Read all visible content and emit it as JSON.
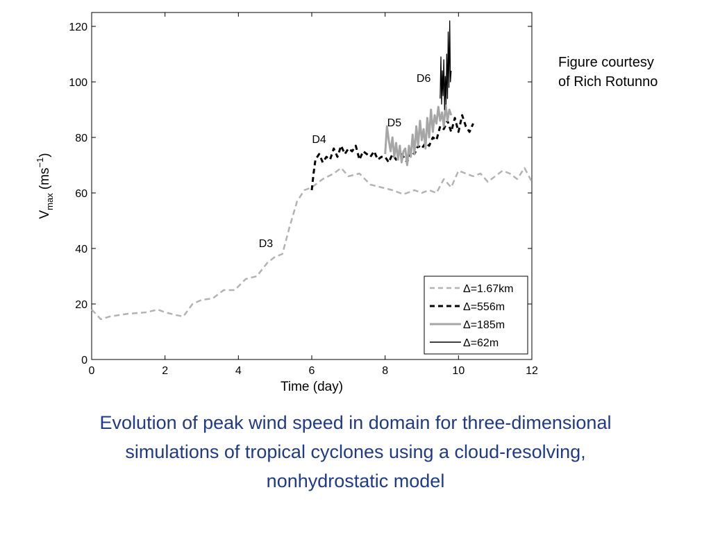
{
  "credit": {
    "line1": "Figure courtesy",
    "line2": "of Rich Rotunno"
  },
  "caption": {
    "line1": "Evolution of peak wind speed in domain for three-dimensional",
    "line2": "simulations of tropical cyclones using a cloud-resolving,",
    "line3": "nonhydrostatic model"
  },
  "colors": {
    "caption": "#1f3a8a",
    "series_1670m": "#b3b3b3",
    "series_556m": "#000000",
    "series_185m": "#a6a6a6",
    "series_62m": "#000000"
  },
  "chart_data": {
    "type": "line",
    "title": "",
    "xlabel": "Time (day)",
    "ylabel_main": "V",
    "ylabel_sub": "max",
    "ylabel_unit": "(ms",
    "ylabel_sup": "−1",
    "ylabel_close": ")",
    "xlim": [
      0,
      12
    ],
    "ylim": [
      0,
      125
    ],
    "xticks": [
      0,
      2,
      4,
      6,
      8,
      10,
      12
    ],
    "yticks": [
      0,
      20,
      40,
      60,
      80,
      100,
      120
    ],
    "grid": false,
    "legend_position": "bottom-right",
    "series": [
      {
        "name": "Δ=1.67km",
        "style": "dashed-gray",
        "x": [
          0,
          0.25,
          0.5,
          1.0,
          1.5,
          1.8,
          2.0,
          2.3,
          2.5,
          2.75,
          3.0,
          3.3,
          3.6,
          3.9,
          4.2,
          4.5,
          4.8,
          5.0,
          5.2,
          5.4,
          5.6,
          5.8,
          6.0,
          6.3,
          6.6,
          6.8,
          7.0,
          7.3,
          7.6,
          7.9,
          8.2,
          8.5,
          8.8,
          9.0,
          9.2,
          9.4,
          9.6,
          9.8,
          10.0,
          10.2,
          10.4,
          10.6,
          10.8,
          11.0,
          11.2,
          11.4,
          11.6,
          11.8,
          12.0
        ],
        "y": [
          18,
          14.5,
          15.5,
          16.5,
          17,
          18,
          17,
          16,
          15.5,
          20,
          21.5,
          22,
          25,
          25,
          29,
          30,
          35,
          37,
          38,
          48,
          57,
          61,
          62,
          65,
          67,
          69,
          66,
          67,
          63,
          62,
          61,
          59.5,
          61,
          60,
          61,
          60,
          65,
          62,
          68,
          67,
          66,
          67,
          64,
          66,
          68,
          67,
          65,
          69,
          64
        ]
      },
      {
        "name": "Δ=556m",
        "style": "dashed-black",
        "x": [
          6.0,
          6.05,
          6.1,
          6.2,
          6.3,
          6.4,
          6.5,
          6.6,
          6.7,
          6.8,
          6.9,
          7.0,
          7.1,
          7.2,
          7.3,
          7.4,
          7.5,
          7.6,
          7.7,
          7.8,
          7.9,
          8.0,
          8.1,
          8.2,
          8.3,
          8.4,
          8.5,
          8.6,
          8.7,
          8.8,
          8.9,
          9.0,
          9.1,
          9.2,
          9.3,
          9.4,
          9.5,
          9.6,
          9.7,
          9.8,
          9.9,
          10.0,
          10.1,
          10.2,
          10.3,
          10.4
        ],
        "y": [
          61,
          67,
          72,
          74,
          71,
          73,
          72,
          76,
          73,
          77,
          74,
          76,
          75,
          77,
          72,
          75,
          74,
          73,
          75,
          72,
          73,
          73,
          71,
          74,
          72,
          75,
          73,
          71,
          75,
          74,
          77,
          76,
          78,
          77,
          80,
          79,
          84,
          83,
          86,
          82,
          87,
          82,
          88,
          84,
          82,
          85
        ]
      },
      {
        "name": "Δ=185m",
        "style": "solid-gray",
        "x": [
          8.0,
          8.05,
          8.1,
          8.15,
          8.2,
          8.25,
          8.3,
          8.35,
          8.4,
          8.45,
          8.5,
          8.55,
          8.6,
          8.65,
          8.7,
          8.75,
          8.8,
          8.85,
          8.9,
          8.95,
          9.0,
          9.05,
          9.1,
          9.15,
          9.2,
          9.25,
          9.3,
          9.35,
          9.4,
          9.45,
          9.5,
          9.55,
          9.6,
          9.65,
          9.7,
          9.75,
          9.8
        ],
        "y": [
          74,
          84,
          79,
          75,
          80,
          73,
          78,
          72,
          77,
          71,
          75,
          76,
          70,
          77,
          73,
          81,
          74,
          84,
          77,
          86,
          79,
          83,
          76,
          87,
          80,
          90,
          82,
          88,
          85,
          91,
          86,
          89,
          84,
          92,
          86,
          90,
          88
        ]
      },
      {
        "name": "Δ=62m",
        "style": "solid-black",
        "x": [
          9.5,
          9.52,
          9.54,
          9.56,
          9.58,
          9.6,
          9.62,
          9.64,
          9.66,
          9.68,
          9.7,
          9.72,
          9.74,
          9.76,
          9.78,
          9.8
        ],
        "y": [
          94,
          109,
          92,
          104,
          95,
          108,
          90,
          102,
          92,
          110,
          94,
          118,
          98,
          122,
          100,
          104
        ]
      }
    ],
    "annotations": [
      {
        "text": "D3",
        "x": 4.75,
        "y": 40.5
      },
      {
        "text": "D4",
        "x": 6.2,
        "y": 78
      },
      {
        "text": "D5",
        "x": 8.25,
        "y": 84
      },
      {
        "text": "D6",
        "x": 9.05,
        "y": 100
      }
    ]
  }
}
